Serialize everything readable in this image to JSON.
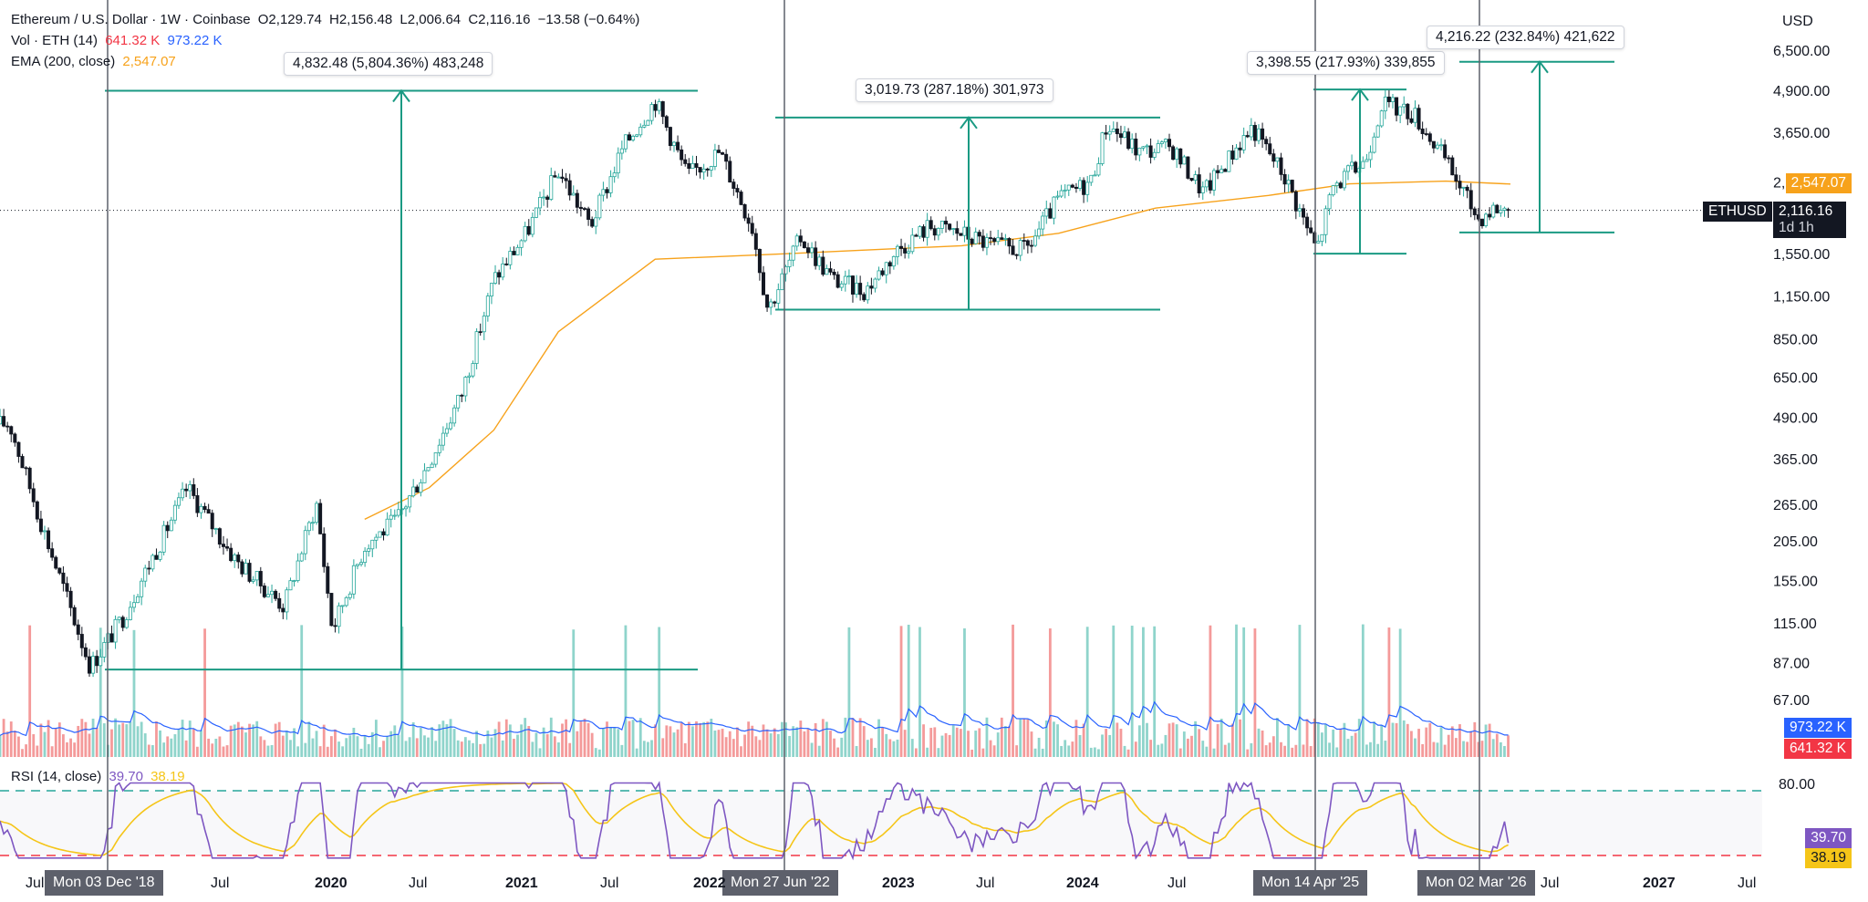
{
  "header": {
    "line1": {
      "symbol": "Ethereum / U.S. Dollar · 1W · Coinbase",
      "open": "O2,129.74",
      "high": "H2,156.48",
      "low": "L2,006.64",
      "close": "C2,116.16",
      "change": "−13.58 (−0.64%)"
    },
    "line2": {
      "label": "Vol · ETH (14)",
      "value1": "641.32 K",
      "value2": "973.22 K"
    },
    "line3": {
      "label": "EMA (200, close)",
      "value": "2,547.07"
    }
  },
  "currency": "USD",
  "price_axis": {
    "labels": [
      "6,500.00",
      "4,900.00",
      "3,650.00",
      "2,570.00",
      "1,550.00",
      "1,150.00",
      "850.00",
      "650.00",
      "490.00",
      "365.00",
      "265.00",
      "205.00",
      "155.00",
      "115.00",
      "87.00",
      "67.00"
    ]
  },
  "tags": {
    "ema": "2,547.07",
    "symbol": "ETHUSD",
    "last": "2,116.16",
    "countdown": "1d 1h",
    "vol_ma": "973.22 K",
    "vol": "641.32 K",
    "rsi": "39.70",
    "rsi_ma": "38.19"
  },
  "measurements": [
    {
      "text": "4,832.48 (5,804.36%) 483,248"
    },
    {
      "text": "3,019.73 (287.18%) 301,973"
    },
    {
      "text": "3,398.55 (217.93%) 339,855"
    },
    {
      "text": "4,216.22 (232.84%) 421,622"
    }
  ],
  "vertical_markers": [
    "Mon 03 Dec '18",
    "Mon 27 Jun '22",
    "Mon 14 Apr '25",
    "Mon 02 Mar '26"
  ],
  "rsi_panel": {
    "label": "RSI (14, close)",
    "value": "39.70",
    "ma_value": "38.19",
    "upper_label": "80.00"
  },
  "time_axis": [
    {
      "label": "Jul",
      "bold": false
    },
    {
      "label": "Jul",
      "bold": false
    },
    {
      "label": "2020",
      "bold": true
    },
    {
      "label": "Jul",
      "bold": false
    },
    {
      "label": "2021",
      "bold": true
    },
    {
      "label": "Jul",
      "bold": false
    },
    {
      "label": "2022",
      "bold": true
    },
    {
      "label": "2023",
      "bold": true
    },
    {
      "label": "Jul",
      "bold": false
    },
    {
      "label": "2024",
      "bold": true
    },
    {
      "label": "Jul",
      "bold": false
    },
    {
      "label": "Jul",
      "bold": false
    },
    {
      "label": "2027",
      "bold": true
    },
    {
      "label": "Jul",
      "bold": false
    }
  ],
  "colors": {
    "up": "#26a69a",
    "down": "#131722",
    "ema": "#f7a21b",
    "measure": "#1a9a83",
    "vol_up": "#8fd4cb",
    "vol_down": "#f49a9a",
    "vol_ma": "#2962ff",
    "rsi": "#7e57c2",
    "rsi_ma": "#f5c518",
    "marker_line": "#5d606b"
  },
  "chart_data": {
    "type": "line",
    "title": "Ethereum / U.S. Dollar · 1W · Coinbase",
    "y_scale": "log",
    "ylim": [
      60,
      7000
    ],
    "approximate_weekly_closes": {
      "x": [
        "2018-07",
        "2018-09",
        "2018-12",
        "2019-02",
        "2019-06",
        "2019-09",
        "2019-12",
        "2020-02",
        "2020-03",
        "2020-05",
        "2020-07",
        "2020-09",
        "2020-11",
        "2021-01",
        "2021-03",
        "2021-05",
        "2021-07",
        "2021-09",
        "2021-11",
        "2022-01",
        "2022-03",
        "2022-05",
        "2022-06",
        "2022-08",
        "2022-10",
        "2022-12",
        "2023-02",
        "2023-04",
        "2023-06",
        "2023-08",
        "2023-10",
        "2023-12",
        "2024-02",
        "2024-03",
        "2024-05",
        "2024-07",
        "2024-09",
        "2024-11",
        "2024-12",
        "2025-02",
        "2025-04",
        "2025-05",
        "2025-07",
        "2025-08",
        "2025-10",
        "2025-12",
        "2026-02",
        "2026-03",
        "2026-04"
      ],
      "y": [
        470,
        230,
        85,
        120,
        300,
        180,
        130,
        270,
        110,
        200,
        240,
        360,
        580,
        1300,
        1800,
        2800,
        1900,
        3300,
        4600,
        2700,
        3200,
        1900,
        1050,
        1750,
        1300,
        1200,
        1600,
        1900,
        1800,
        1650,
        1600,
        2300,
        2600,
        3900,
        3200,
        3300,
        2400,
        3300,
        3800,
        2700,
        1600,
        2500,
        3000,
        4500,
        4200,
        3000,
        2000,
        2150,
        2116
      ]
    },
    "ema200": {
      "x": [
        "2020-05",
        "2020-09",
        "2021-01",
        "2021-05",
        "2021-11",
        "2022-06",
        "2022-12",
        "2023-06",
        "2023-12",
        "2024-06",
        "2025-01",
        "2025-06",
        "2025-12",
        "2026-04"
      ],
      "y": [
        240,
        300,
        450,
        900,
        1500,
        1550,
        1600,
        1650,
        1800,
        2150,
        2350,
        2550,
        2600,
        2547
      ]
    },
    "measurements": [
      {
        "from": 83.26,
        "to": 4915.74,
        "change": 4832.48,
        "percent": 5804.36
      },
      {
        "from": 1051.36,
        "to": 4071.09,
        "change": 3019.73,
        "percent": 287.18
      },
      {
        "from": 1559.49,
        "to": 4958.04,
        "change": 3398.55,
        "percent": 217.93
      },
      {
        "from": 1810.71,
        "to": 6026.93,
        "change": 4216.22,
        "percent": 232.84
      }
    ],
    "rsi": {
      "last": 39.7,
      "ma": 38.19,
      "upper": 80,
      "lower": 30
    }
  }
}
